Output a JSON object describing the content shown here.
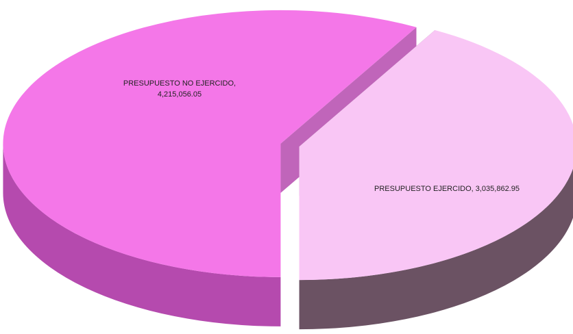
{
  "chart_data": {
    "type": "pie",
    "categories": [
      "PRESUPUESTO NO EJERCIDO",
      "PRESUPUESTO EJERCIDO"
    ],
    "values": [
      4215056.05,
      3035862.95
    ],
    "value_labels": [
      "4,215,056.05",
      "3,035,862.95"
    ],
    "colors": [
      "#f477e8",
      "#f9c6f5"
    ],
    "side_colors": [
      "#b54aae",
      "#6b5263"
    ]
  }
}
